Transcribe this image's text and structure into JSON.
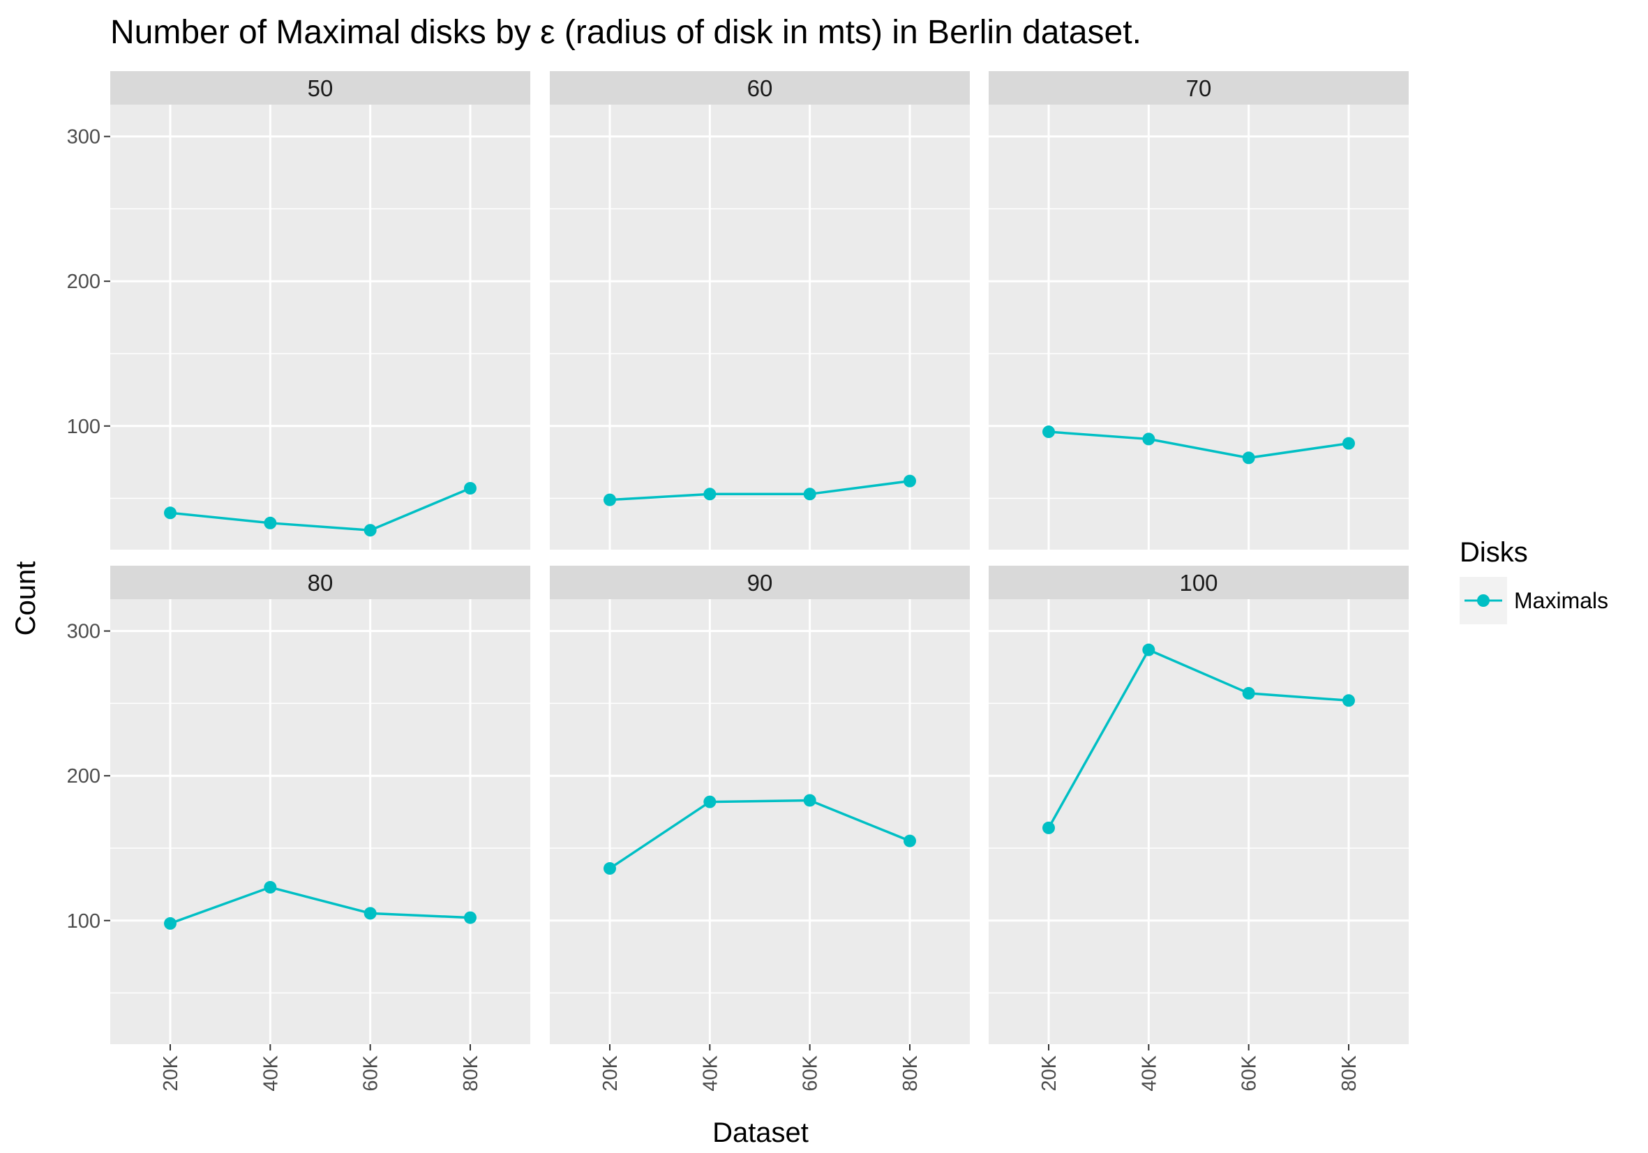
{
  "chart_data": {
    "type": "line",
    "title": "Number of Maximal disks by ε (radius of disk in mts) in Berlin dataset.",
    "xlabel": "Dataset",
    "ylabel": "Count",
    "categories": [
      "20K",
      "40K",
      "60K",
      "80K"
    ],
    "y_ticks": [
      100,
      200,
      300
    ],
    "ylim": [
      14.6,
      322
    ],
    "grid": true,
    "legend": {
      "title": "Disks",
      "position": "right",
      "entries": [
        "Maximals"
      ]
    },
    "series_color": "#00BFC4",
    "facets": [
      {
        "label": "50",
        "series": [
          {
            "name": "Maximals",
            "values": [
              40,
              33,
              28,
              57
            ]
          }
        ]
      },
      {
        "label": "60",
        "series": [
          {
            "name": "Maximals",
            "values": [
              49,
              53,
              53,
              62
            ]
          }
        ]
      },
      {
        "label": "70",
        "series": [
          {
            "name": "Maximals",
            "values": [
              96,
              91,
              78,
              88
            ]
          }
        ]
      },
      {
        "label": "80",
        "series": [
          {
            "name": "Maximals",
            "values": [
              98,
              123,
              105,
              102
            ]
          }
        ]
      },
      {
        "label": "90",
        "series": [
          {
            "name": "Maximals",
            "values": [
              136,
              182,
              183,
              155
            ]
          }
        ]
      },
      {
        "label": "100",
        "series": [
          {
            "name": "Maximals",
            "values": [
              164,
              287,
              257,
              252
            ]
          }
        ]
      }
    ]
  }
}
